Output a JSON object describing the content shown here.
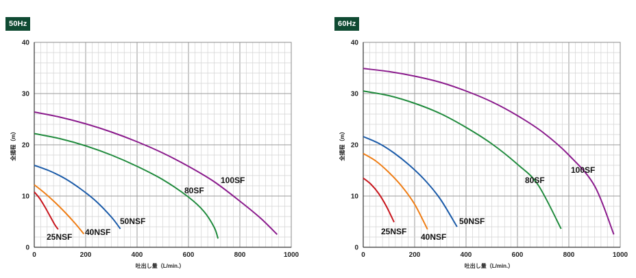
{
  "chart_data": [
    {
      "type": "line",
      "badge": "50Hz",
      "xlabel": "吐出し量（L/min.）",
      "ylabel": "全揚程（m）",
      "xlim": [
        0,
        1000
      ],
      "ylim": [
        0,
        40
      ],
      "xticks": [
        0,
        200,
        400,
        600,
        800,
        1000
      ],
      "yticks": [
        0,
        10,
        20,
        30,
        40
      ],
      "grid": true,
      "series": [
        {
          "name": "25NSF",
          "color": "#c8161d",
          "x": [
            0,
            20,
            40,
            60,
            80,
            93
          ],
          "y": [
            10.8,
            9.6,
            8.0,
            6.2,
            4.4,
            3.5
          ]
        },
        {
          "name": "40NSF",
          "color": "#ef7d14",
          "x": [
            0,
            40,
            80,
            120,
            160,
            193
          ],
          "y": [
            12.2,
            10.6,
            8.8,
            6.8,
            4.6,
            2.6
          ]
        },
        {
          "name": "50NSF",
          "color": "#1a5aa8",
          "x": [
            0,
            60,
            120,
            180,
            240,
            300,
            335
          ],
          "y": [
            16.0,
            14.9,
            13.4,
            11.4,
            9.0,
            5.9,
            3.6
          ]
        },
        {
          "name": "80SF",
          "color": "#1f8a3c",
          "x": [
            0,
            100,
            200,
            300,
            400,
            500,
            600,
            660,
            700,
            715
          ],
          "y": [
            22.2,
            21.2,
            19.8,
            18.0,
            15.8,
            13.2,
            9.8,
            7.0,
            3.9,
            1.7
          ]
        },
        {
          "name": "100SF",
          "color": "#8a1a8c",
          "x": [
            0,
            100,
            200,
            300,
            400,
            500,
            600,
            700,
            800,
            880,
            945
          ],
          "y": [
            26.4,
            25.4,
            24.1,
            22.5,
            20.6,
            18.4,
            15.8,
            12.8,
            9.0,
            5.7,
            2.5
          ]
        }
      ]
    },
    {
      "type": "line",
      "badge": "60Hz",
      "xlabel": "吐出し量（L/min.）",
      "ylabel": "全揚程（m）",
      "xlim": [
        0,
        1000
      ],
      "ylim": [
        0,
        40
      ],
      "xticks": [
        0,
        200,
        400,
        600,
        800,
        1000
      ],
      "yticks": [
        0,
        10,
        20,
        30,
        40
      ],
      "grid": true,
      "series": [
        {
          "name": "25NSF",
          "color": "#c8161d",
          "x": [
            0,
            30,
            60,
            90,
            120
          ],
          "y": [
            13.5,
            12.3,
            10.5,
            8.0,
            4.9
          ]
        },
        {
          "name": "40NSF",
          "color": "#ef7d14",
          "x": [
            0,
            50,
            100,
            150,
            200,
            250
          ],
          "y": [
            18.3,
            16.8,
            14.6,
            11.9,
            8.4,
            3.5
          ]
        },
        {
          "name": "50NSF",
          "color": "#1a5aa8",
          "x": [
            0,
            60,
            120,
            180,
            240,
            300,
            365
          ],
          "y": [
            21.6,
            20.3,
            18.4,
            16.0,
            13.1,
            9.4,
            4.0
          ]
        },
        {
          "name": "80SF",
          "color": "#1f8a3c",
          "x": [
            0,
            100,
            200,
            300,
            400,
            500,
            600,
            680,
            770
          ],
          "y": [
            30.5,
            29.6,
            28.1,
            26.1,
            23.4,
            20.2,
            16.2,
            12.2,
            3.6
          ]
        },
        {
          "name": "100SF",
          "color": "#8a1a8c",
          "x": [
            0,
            100,
            200,
            300,
            400,
            500,
            600,
            700,
            800,
            900,
            975
          ],
          "y": [
            34.9,
            34.3,
            33.4,
            32.2,
            30.5,
            28.4,
            25.7,
            22.4,
            18.0,
            12.0,
            2.5
          ]
        }
      ]
    }
  ]
}
